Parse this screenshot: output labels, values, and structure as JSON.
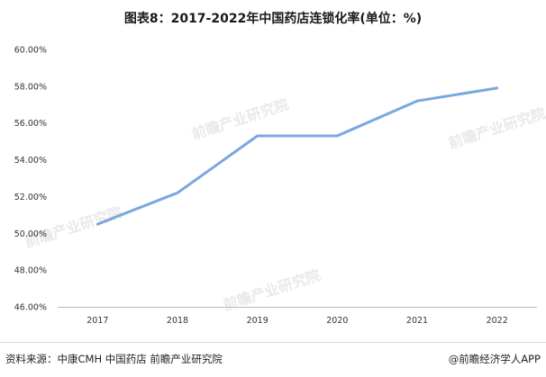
{
  "chart_data": {
    "type": "line",
    "title": "图表8：2017-2022年中国药店连锁化率(单位：%)",
    "categories": [
      "2017",
      "2018",
      "2019",
      "2020",
      "2021",
      "2022"
    ],
    "series": [
      {
        "values": [
          50.5,
          52.2,
          55.3,
          55.3,
          57.2,
          57.9
        ]
      }
    ],
    "yticks": [
      "46.00%",
      "48.00%",
      "50.00%",
      "52.00%",
      "54.00%",
      "56.00%",
      "58.00%",
      "60.00%"
    ],
    "ylim": [
      46,
      60
    ],
    "xlabel": "",
    "ylabel": "",
    "line_color": "#7aa7df",
    "grid": false,
    "legend": "none"
  },
  "footer": {
    "source": "资料来源：中康CMH 中国药店 前瞻产业研究院",
    "credit": "@前瞻经济学人APP"
  },
  "watermark": {
    "text": "前瞻产业研究院",
    "color": "#e9e9e9"
  }
}
